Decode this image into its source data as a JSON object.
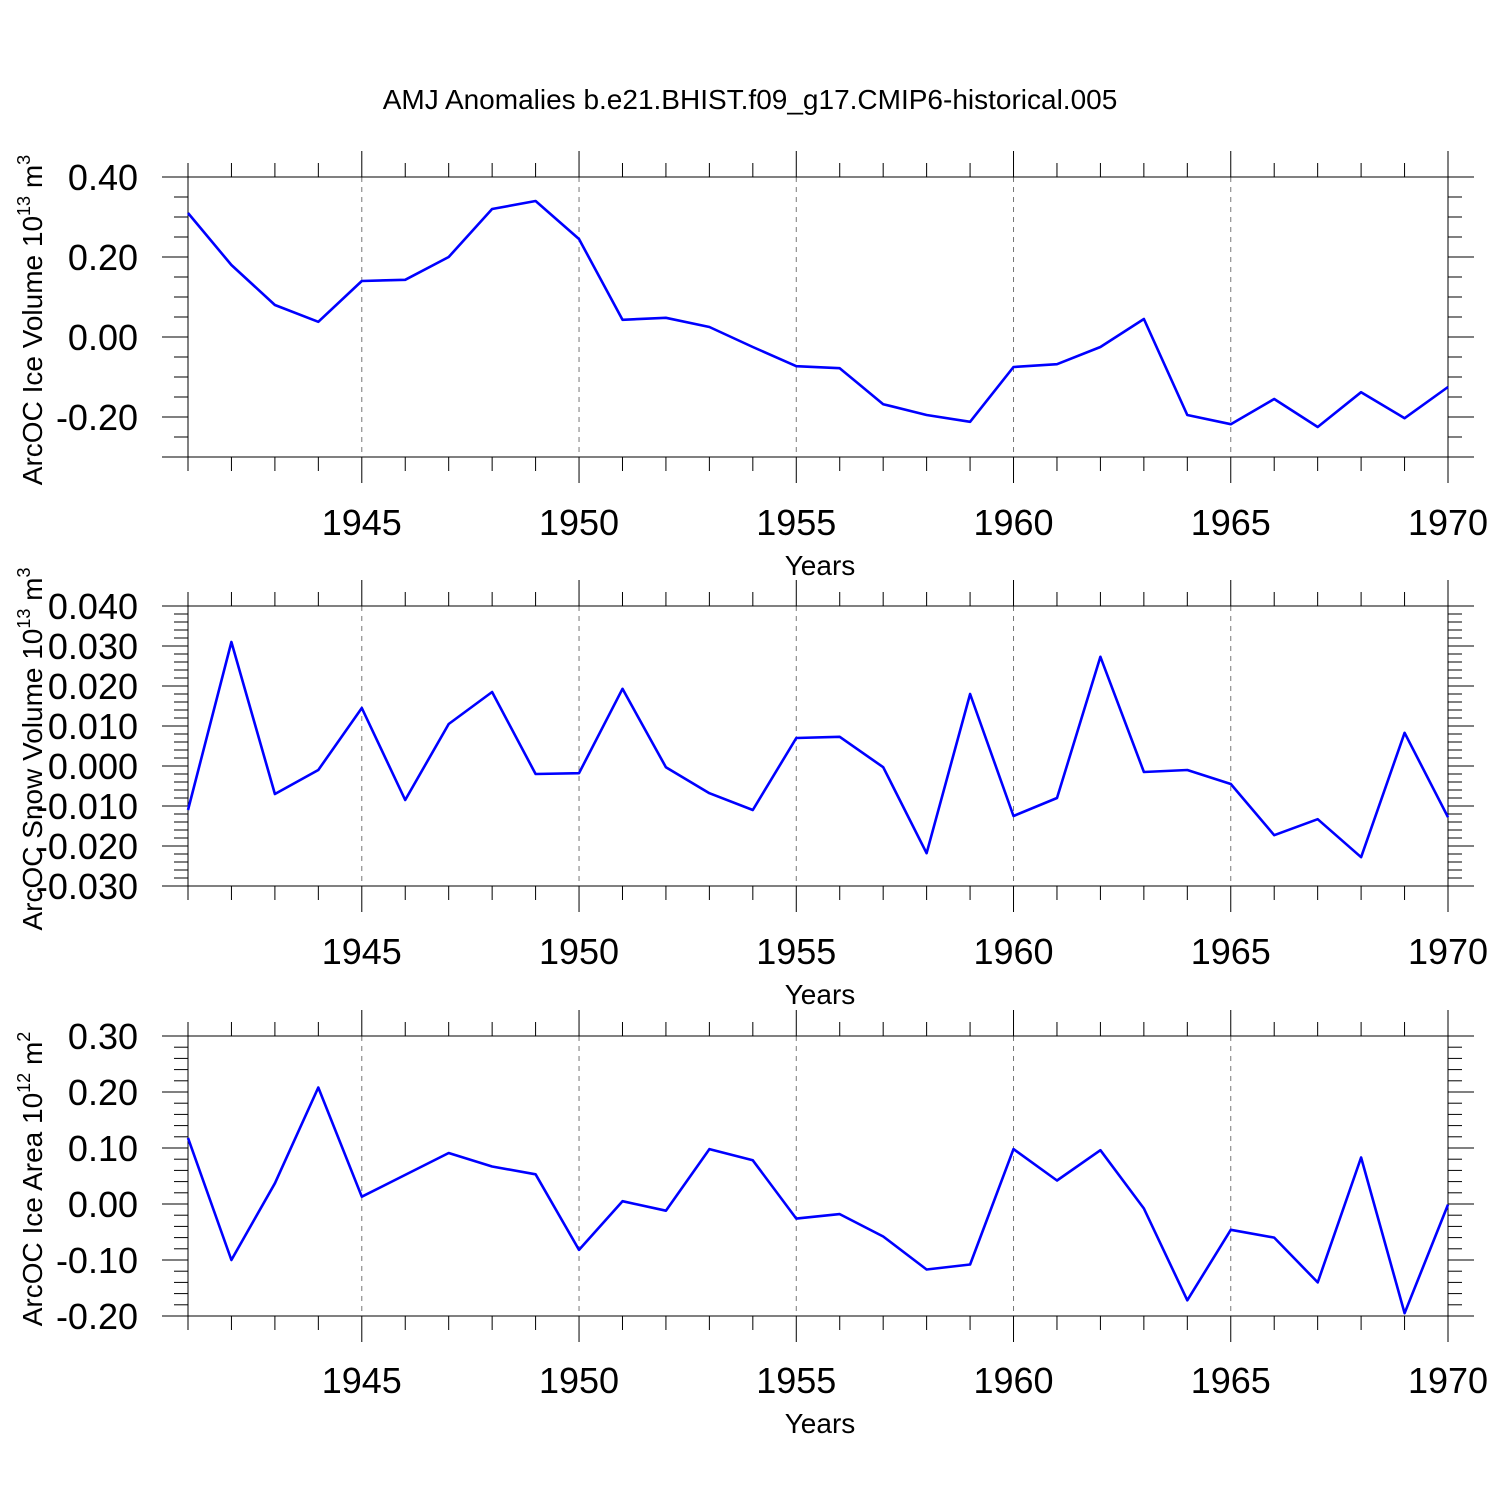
{
  "title": "AMJ Anomalies b.e21.BHIST.f09_g17.CMIP6-historical.005",
  "chart_data": [
    {
      "type": "line",
      "series": [
        {
          "name": "ArcOC Ice Volume",
          "color": "#0000ff",
          "values": [
            0.31,
            0.18,
            0.08,
            0.038,
            0.14,
            0.143,
            0.2,
            0.32,
            0.34,
            0.245,
            0.043,
            0.048,
            0.025,
            -0.025,
            -0.073,
            -0.078,
            -0.168,
            -0.195,
            -0.212,
            -0.075,
            -0.068,
            -0.025,
            0.045,
            -0.195,
            -0.218,
            -0.155,
            -0.225,
            -0.138,
            -0.203,
            -0.125
          ]
        }
      ],
      "x": [
        1941,
        1942,
        1943,
        1944,
        1945,
        1946,
        1947,
        1948,
        1949,
        1950,
        1951,
        1952,
        1953,
        1954,
        1955,
        1956,
        1957,
        1958,
        1959,
        1960,
        1961,
        1962,
        1963,
        1964,
        1965,
        1966,
        1967,
        1968,
        1969,
        1970
      ],
      "xlim": [
        1941,
        1970
      ],
      "ylim": [
        -0.3,
        0.4
      ],
      "xticks": [
        1945,
        1950,
        1955,
        1960,
        1965,
        1970
      ],
      "xtick_labels": [
        "1945",
        "1950",
        "1955",
        "1960",
        "1965",
        "1970"
      ],
      "yticks": [
        0.4,
        0.2,
        0.0,
        -0.2
      ],
      "ytick_labels": [
        "0.40",
        "0.20",
        "0.00",
        "-0.20"
      ],
      "yminor_step": 0.05,
      "xlabel": "Years",
      "ylabel": "ArcOC Ice Volume 10",
      "ylabel_exp": "13",
      "ylabel_unit": " m",
      "ylabel_unit_exp": "3"
    },
    {
      "type": "line",
      "series": [
        {
          "name": "ArcOC Snow Volume",
          "color": "#0000ff",
          "values": [
            -0.011,
            0.031,
            -0.007,
            -0.001,
            0.0145,
            -0.0085,
            0.0105,
            0.0185,
            -0.002,
            -0.0018,
            0.0193,
            -0.0003,
            -0.0068,
            -0.011,
            0.007,
            0.0073,
            -0.0003,
            -0.0218,
            0.018,
            -0.0125,
            -0.008,
            0.0273,
            -0.0015,
            -0.001,
            -0.0045,
            -0.0173,
            -0.0133,
            -0.0228,
            0.0083,
            -0.0128
          ]
        }
      ],
      "x": [
        1941,
        1942,
        1943,
        1944,
        1945,
        1946,
        1947,
        1948,
        1949,
        1950,
        1951,
        1952,
        1953,
        1954,
        1955,
        1956,
        1957,
        1958,
        1959,
        1960,
        1961,
        1962,
        1963,
        1964,
        1965,
        1966,
        1967,
        1968,
        1969,
        1970
      ],
      "xlim": [
        1941,
        1970
      ],
      "ylim": [
        -0.03,
        0.04
      ],
      "xticks": [
        1945,
        1950,
        1955,
        1960,
        1965,
        1970
      ],
      "xtick_labels": [
        "1945",
        "1950",
        "1955",
        "1960",
        "1965",
        "1970"
      ],
      "yticks": [
        0.04,
        0.03,
        0.02,
        0.01,
        0.0,
        -0.01,
        -0.02,
        -0.03
      ],
      "ytick_labels": [
        "0.040",
        "0.030",
        "0.020",
        "0.010",
        "0.000",
        "-0.010",
        "-0.020",
        "-0.030"
      ],
      "yminor_step": 0.002,
      "xlabel": "Years",
      "ylabel": "ArcOC Snow Volume 10",
      "ylabel_exp": "13",
      "ylabel_unit": " m",
      "ylabel_unit_exp": "3"
    },
    {
      "type": "line",
      "series": [
        {
          "name": "ArcOC Ice Area",
          "color": "#0000ff",
          "values": [
            0.118,
            -0.1,
            0.037,
            0.208,
            0.013,
            0.052,
            0.091,
            0.067,
            0.053,
            -0.082,
            0.005,
            -0.012,
            0.098,
            0.078,
            -0.026,
            -0.018,
            -0.058,
            -0.117,
            -0.108,
            0.098,
            0.042,
            0.096,
            -0.008,
            -0.172,
            -0.046,
            -0.06,
            -0.14,
            0.083,
            -0.195,
            -0.001
          ]
        }
      ],
      "x": [
        1941,
        1942,
        1943,
        1944,
        1945,
        1946,
        1947,
        1948,
        1949,
        1950,
        1951,
        1952,
        1953,
        1954,
        1955,
        1956,
        1957,
        1958,
        1959,
        1960,
        1961,
        1962,
        1963,
        1964,
        1965,
        1966,
        1967,
        1968,
        1969,
        1970
      ],
      "xlim": [
        1941,
        1970
      ],
      "ylim": [
        -0.2,
        0.3
      ],
      "xticks": [
        1945,
        1950,
        1955,
        1960,
        1965,
        1970
      ],
      "xtick_labels": [
        "1945",
        "1950",
        "1955",
        "1960",
        "1965",
        "1970"
      ],
      "yticks": [
        0.3,
        0.2,
        0.1,
        0.0,
        -0.1,
        -0.2
      ],
      "ytick_labels": [
        "0.30",
        "0.20",
        "0.10",
        "0.00",
        "-0.10",
        "-0.20"
      ],
      "yminor_step": 0.02,
      "xlabel": "Years",
      "ylabel": "ArcOC Ice Area 10",
      "ylabel_exp": "12",
      "ylabel_unit": " m",
      "ylabel_unit_exp": "2"
    }
  ]
}
